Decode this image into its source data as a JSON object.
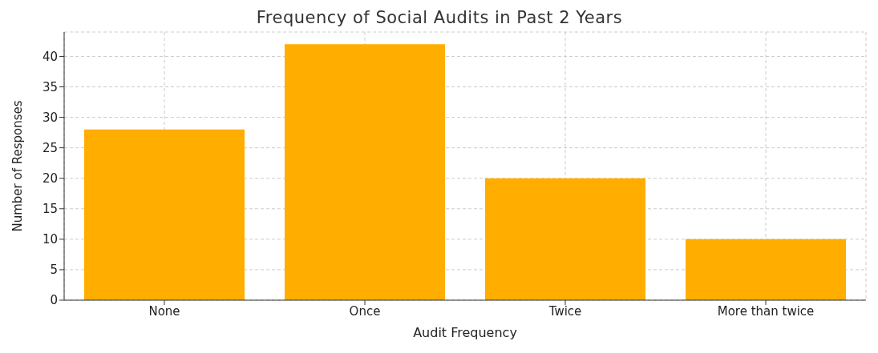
{
  "chart_data": {
    "type": "bar",
    "title": "Frequency of Social Audits in Past 2 Years",
    "xlabel": "Audit Frequency",
    "ylabel": "Number of Responses",
    "categories": [
      "None",
      "Once",
      "Twice",
      "More than twice"
    ],
    "values": [
      28,
      42,
      20,
      10
    ],
    "color": "#ffae00",
    "ylim": [
      0,
      44
    ],
    "yticks": [
      0,
      5,
      10,
      15,
      20,
      25,
      30,
      35,
      40
    ],
    "grid": true
  }
}
